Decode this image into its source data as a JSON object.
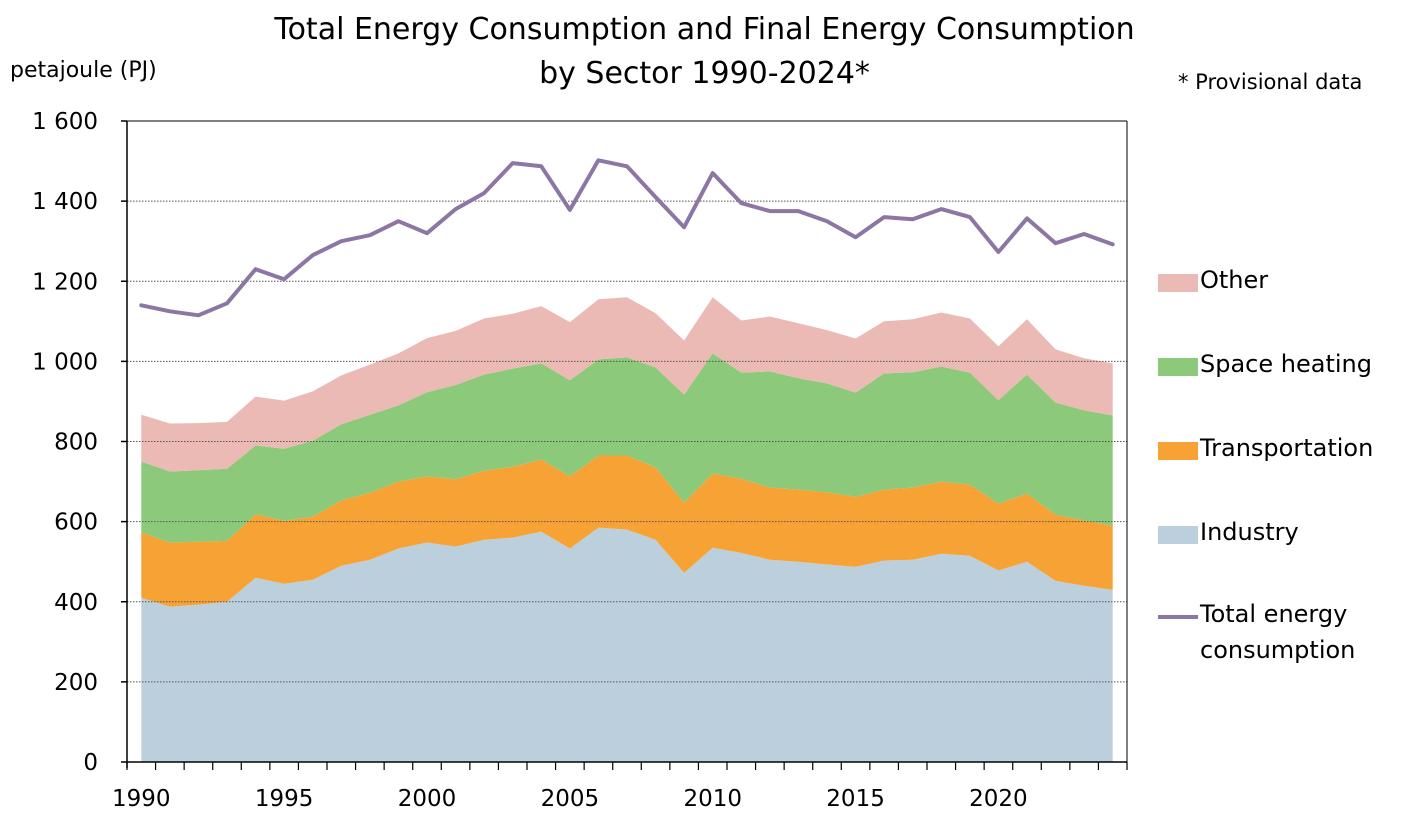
{
  "title_line1": "Total Energy Consumption and Final Energy Consumption",
  "title_line2": "by Sector 1990-2024*",
  "unit_label": "petajoule (PJ)",
  "note": "* Provisional data",
  "chart_data": {
    "type": "area",
    "x": [
      1990,
      1991,
      1992,
      1993,
      1994,
      1995,
      1996,
      1997,
      1998,
      1999,
      2000,
      2001,
      2002,
      2003,
      2004,
      2005,
      2006,
      2007,
      2008,
      2009,
      2010,
      2011,
      2012,
      2013,
      2014,
      2015,
      2016,
      2017,
      2018,
      2019,
      2020,
      2021,
      2022,
      2023,
      2024
    ],
    "xticks": [
      1990,
      1995,
      2000,
      2005,
      2010,
      2015,
      2020
    ],
    "xlim": [
      1989.5,
      2024.5
    ],
    "ylim": [
      0,
      1600
    ],
    "yticks": [
      0,
      200,
      400,
      600,
      800,
      1000,
      1200,
      1400,
      1600
    ],
    "ytick_labels": [
      "0",
      "200",
      "400",
      "600",
      "800",
      "1 000",
      "1 200",
      "1 400",
      "1 600"
    ],
    "grid": "horizontal dotted",
    "legend_position": "right",
    "stacked_series": [
      {
        "name": "Industry",
        "color": "#bccfdc",
        "values": [
          410,
          388,
          393,
          400,
          460,
          445,
          455,
          490,
          505,
          533,
          548,
          538,
          555,
          560,
          575,
          533,
          585,
          580,
          555,
          472,
          535,
          522,
          505,
          500,
          493,
          487,
          503,
          505,
          520,
          515,
          478,
          500,
          452,
          440,
          430
        ]
      },
      {
        "name": "Transportation",
        "color": "#f7a234",
        "values": [
          163,
          160,
          157,
          152,
          158,
          157,
          157,
          163,
          167,
          167,
          165,
          168,
          172,
          177,
          180,
          180,
          180,
          185,
          180,
          175,
          185,
          185,
          180,
          180,
          180,
          175,
          177,
          180,
          180,
          177,
          167,
          170,
          165,
          163,
          160
        ]
      },
      {
        "name": "Space heating",
        "color": "#8dc97a",
        "values": [
          177,
          177,
          178,
          180,
          172,
          180,
          190,
          190,
          195,
          190,
          210,
          235,
          240,
          245,
          240,
          240,
          240,
          245,
          250,
          270,
          300,
          265,
          290,
          278,
          272,
          260,
          290,
          288,
          287,
          280,
          258,
          297,
          280,
          275,
          275
        ]
      },
      {
        "name": "Other",
        "color": "#ebbab5",
        "values": [
          117,
          120,
          118,
          117,
          122,
          120,
          123,
          122,
          125,
          130,
          135,
          135,
          140,
          137,
          143,
          145,
          150,
          150,
          135,
          135,
          140,
          130,
          137,
          137,
          133,
          135,
          130,
          132,
          135,
          135,
          135,
          138,
          133,
          130,
          130
        ]
      }
    ],
    "line_series": [
      {
        "name": "Total energy consumption",
        "color": "#8c76a4",
        "values": [
          1140,
          1125,
          1115,
          1145,
          1230,
          1205,
          1265,
          1300,
          1315,
          1350,
          1320,
          1380,
          1420,
          1495,
          1487,
          1378,
          1502,
          1487,
          1410,
          1335,
          1470,
          1395,
          1375,
          1375,
          1350,
          1310,
          1360,
          1355,
          1380,
          1360,
          1273,
          1357,
          1295,
          1318,
          1292
        ]
      }
    ]
  },
  "legend": [
    {
      "label": "Other",
      "color": "#ebbab5",
      "kind": "area"
    },
    {
      "label": "Space heating",
      "color": "#8dc97a",
      "kind": "area"
    },
    {
      "label": "Transportation",
      "color": "#f7a234",
      "kind": "area"
    },
    {
      "label": "Industry",
      "color": "#bccfdc",
      "kind": "area"
    },
    {
      "label": "Total energy consumption",
      "line1": "Total energy",
      "line2": "consumption",
      "color": "#8c76a4",
      "kind": "line"
    }
  ]
}
